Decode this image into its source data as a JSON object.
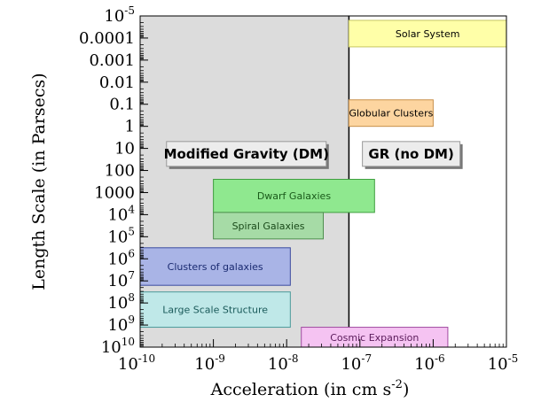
{
  "chart_data": {
    "type": "region-diagram",
    "xlabel_main": "Acceleration (in cm s",
    "xlabel_sup": "-2",
    "xlabel_end": ")",
    "ylabel": "Length Scale (in Parsecs)",
    "xscale": "log",
    "yscale": "log",
    "xlim_exp": [
      -10,
      -5
    ],
    "ylim_exp": [
      -5,
      10
    ],
    "y_inverted": true,
    "x_ticks": [
      {
        "exp": -10,
        "base": "10",
        "sup": "-10"
      },
      {
        "exp": -9,
        "base": "10",
        "sup": "-9"
      },
      {
        "exp": -8,
        "base": "10",
        "sup": "-8"
      },
      {
        "exp": -7,
        "base": "10",
        "sup": "-7"
      },
      {
        "exp": -6,
        "base": "10",
        "sup": "-6"
      },
      {
        "exp": -5,
        "base": "10",
        "sup": "-5"
      }
    ],
    "y_ticks": [
      {
        "exp": -5,
        "base": "10",
        "sup": "-5"
      },
      {
        "exp": -4,
        "base": "0.0001",
        "sup": ""
      },
      {
        "exp": -3,
        "base": "0.001",
        "sup": ""
      },
      {
        "exp": -2,
        "base": "0.01",
        "sup": ""
      },
      {
        "exp": -1,
        "base": "0.1",
        "sup": ""
      },
      {
        "exp": 0,
        "base": "1",
        "sup": ""
      },
      {
        "exp": 1,
        "base": "10",
        "sup": ""
      },
      {
        "exp": 2,
        "base": "100",
        "sup": ""
      },
      {
        "exp": 3,
        "base": "1000",
        "sup": ""
      },
      {
        "exp": 4,
        "base": "10",
        "sup": "4"
      },
      {
        "exp": 5,
        "base": "10",
        "sup": "5"
      },
      {
        "exp": 6,
        "base": "10",
        "sup": "6"
      },
      {
        "exp": 7,
        "base": "10",
        "sup": "7"
      },
      {
        "exp": 8,
        "base": "10",
        "sup": "8"
      },
      {
        "exp": 9,
        "base": "10",
        "sup": "9"
      },
      {
        "exp": 10,
        "base": "10",
        "sup": "10"
      }
    ],
    "threshold_a0_exp": -7.15,
    "regions": [
      {
        "name": "modified-gravity-region",
        "label": "Modified Gravity (DM)",
        "color": "#dcdcdc"
      },
      {
        "name": "gr-region",
        "label": "GR (no DM)",
        "color": "#ffffff"
      }
    ],
    "boxes": [
      {
        "name": "solar-system",
        "label": "Solar System",
        "x_exp": [
          -7.15,
          -5.0
        ],
        "y_exp": [
          -4.8,
          -3.6
        ],
        "fill": "#ffffa8",
        "stroke": "#c8c860",
        "text": "#000000"
      },
      {
        "name": "globular-clusters",
        "label": "Globular Clusters",
        "x_exp": [
          -7.15,
          -6.0
        ],
        "y_exp": [
          -1.2,
          0.0
        ],
        "fill": "#fdd5a0",
        "stroke": "#c8904a",
        "text": "#000000"
      },
      {
        "name": "dwarf-galaxies",
        "label": "Dwarf Galaxies",
        "x_exp": [
          -9.0,
          -6.8
        ],
        "y_exp": [
          2.4,
          3.9
        ],
        "fill": "#8fe88f",
        "stroke": "#3f9f3f",
        "text": "#1a5a1a"
      },
      {
        "name": "spiral-galaxies",
        "label": "Spiral Galaxies",
        "x_exp": [
          -9.0,
          -7.5
        ],
        "y_exp": [
          3.9,
          5.1
        ],
        "fill": "#a6dba6",
        "stroke": "#4f8f4f",
        "text": "#1a4a1a"
      },
      {
        "name": "clusters-of-galaxies",
        "label": "Clusters of galaxies",
        "x_exp": [
          -10.0,
          -7.95
        ],
        "y_exp": [
          5.5,
          7.2
        ],
        "fill": "#a9b4e6",
        "stroke": "#3a4aa0",
        "text": "#1a2a70"
      },
      {
        "name": "large-scale-structure",
        "label": "Large Scale Structure",
        "x_exp": [
          -10.0,
          -7.95
        ],
        "y_exp": [
          7.5,
          9.1
        ],
        "fill": "#bfe8e8",
        "stroke": "#4a9a9a",
        "text": "#1a5a5a"
      },
      {
        "name": "cosmic-expansion",
        "label": "Cosmic Expansion",
        "x_exp": [
          -7.8,
          -5.8
        ],
        "y_exp": [
          9.1,
          10.0
        ],
        "fill": "#f5c3f2",
        "stroke": "#a04aa0",
        "text": "#5a1a5a"
      }
    ]
  }
}
